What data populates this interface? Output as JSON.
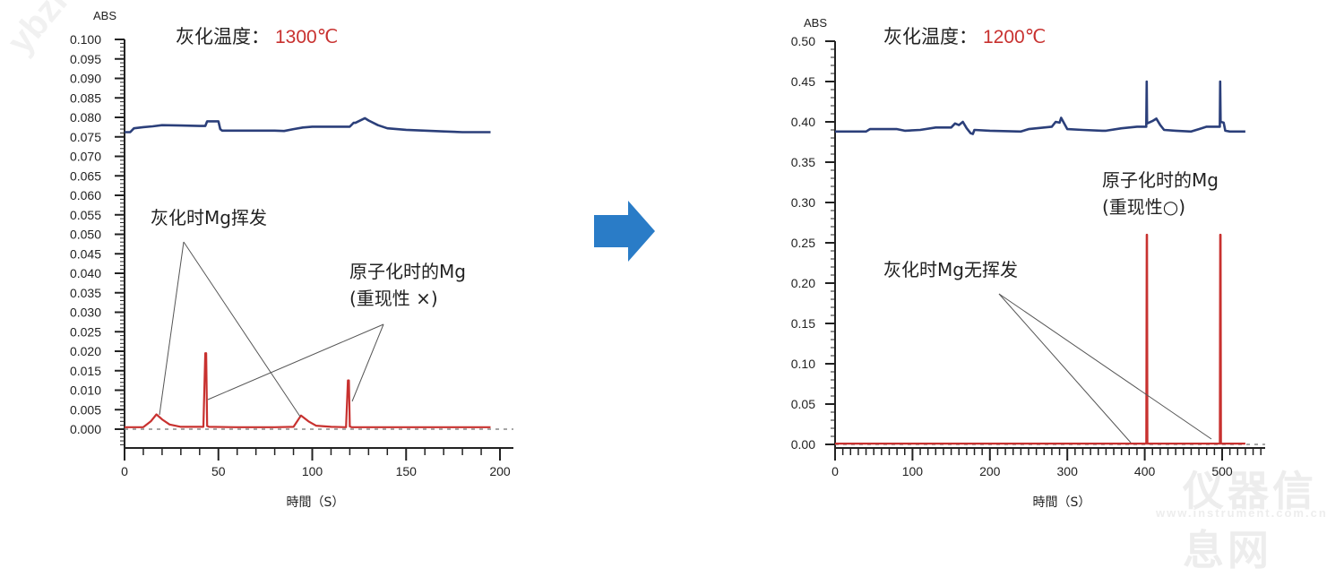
{
  "colors": {
    "blue_series": "#2b3f7a",
    "red_series": "#c8312f",
    "arrow": "#2a7cc7",
    "axis": "#222222",
    "leader_line": "#555555",
    "baseline_dash": "#888888"
  },
  "arrow": {
    "icon": "right-arrow-icon",
    "color": "#2a7cc7"
  },
  "watermarks": [
    "ybzhan.cn",
    "仪器信息网",
    "www.instrument.com.cn"
  ],
  "chart_data": [
    {
      "type": "line",
      "title": "灰化温度：1300℃",
      "title_prefix": "灰化温度：",
      "title_value": "1300℃",
      "xlabel": "時間（S）",
      "ylabel": "ABS",
      "xlim": [
        0,
        210
      ],
      "ylim": [
        -0.005,
        0.1
      ],
      "xticks": [
        0,
        50,
        100,
        150,
        200
      ],
      "yticks": [
        "0.100",
        "0.095",
        "0.090",
        "0.085",
        "0.080",
        "0.075",
        "0.070",
        "0.065",
        "0.060",
        "0.055",
        "0.050",
        "0.045",
        "0.040",
        "0.035",
        "0.030",
        "0.025",
        "0.020",
        "0.015",
        "0.010",
        "0.005",
        "0.000"
      ],
      "baseline": 0.0,
      "grid": false,
      "series": [
        {
          "name": "Background (blue)",
          "color": "#2b3f7a",
          "x": [
            0,
            3,
            5,
            10,
            15,
            20,
            30,
            40,
            43,
            44,
            50,
            51,
            52,
            60,
            70,
            80,
            85,
            90,
            95,
            100,
            110,
            120,
            122,
            123,
            128,
            130,
            135,
            140,
            150,
            160,
            170,
            180,
            190,
            195
          ],
          "y": [
            0.0762,
            0.0762,
            0.0772,
            0.0775,
            0.0777,
            0.078,
            0.0779,
            0.0778,
            0.0778,
            0.079,
            0.079,
            0.077,
            0.0766,
            0.0766,
            0.0766,
            0.0766,
            0.0765,
            0.077,
            0.0774,
            0.0776,
            0.0776,
            0.0776,
            0.0786,
            0.0786,
            0.0798,
            0.0792,
            0.078,
            0.0772,
            0.0768,
            0.0766,
            0.0764,
            0.0762,
            0.0762,
            0.0762
          ]
        },
        {
          "name": "Mg signal (red)",
          "color": "#c8312f",
          "x": [
            0,
            10,
            14,
            17,
            20,
            24,
            30,
            42,
            43,
            43.5,
            44,
            45,
            60,
            80,
            90,
            94,
            98,
            102,
            110,
            118,
            119,
            119.5,
            120,
            121,
            140,
            160,
            180,
            195
          ],
          "y": [
            0.0005,
            0.0005,
            0.002,
            0.0038,
            0.0025,
            0.0012,
            0.0006,
            0.0006,
            0.0195,
            0.0195,
            0.0008,
            0.0006,
            0.0005,
            0.0005,
            0.0006,
            0.0035,
            0.002,
            0.0009,
            0.0006,
            0.0005,
            0.0125,
            0.0125,
            0.0007,
            0.0005,
            0.0005,
            0.0005,
            0.0005,
            0.0005
          ]
        }
      ],
      "annotations": [
        {
          "id": "ashing_volatilize",
          "text": "灰化时Mg挥发",
          "points_to_x": [
            17,
            94
          ]
        },
        {
          "id": "atomization_line1",
          "text": "原子化时的Mg",
          "points_to_x": [
            43,
            120
          ]
        },
        {
          "id": "atomization_line2",
          "text": "(重现性 ×)"
        }
      ]
    },
    {
      "type": "line",
      "title": "灰化温度：1200℃",
      "title_prefix": "灰化温度：",
      "title_value": "1200℃",
      "xlabel": "時間（S）",
      "ylabel": "ABS",
      "xlim": [
        0,
        560
      ],
      "ylim": [
        -0.005,
        0.5
      ],
      "xticks": [
        0,
        100,
        200,
        300,
        400,
        500
      ],
      "yticks": [
        "0.50",
        "0.45",
        "0.40",
        "0.35",
        "0.30",
        "0.25",
        "0.20",
        "0.15",
        "0.10",
        "0.05",
        "0.00"
      ],
      "baseline": 0.0,
      "grid": false,
      "series": [
        {
          "name": "Background (blue)",
          "color": "#2b3f7a",
          "x": [
            0,
            40,
            45,
            80,
            90,
            110,
            130,
            150,
            155,
            160,
            165,
            170,
            175,
            178,
            180,
            200,
            240,
            250,
            270,
            280,
            285,
            290,
            292,
            296,
            300,
            320,
            345,
            350,
            370,
            390,
            402,
            402.5,
            403,
            410,
            415,
            420,
            425,
            440,
            460,
            470,
            480,
            495,
            497,
            497.5,
            498,
            502,
            504,
            510,
            530
          ],
          "y": [
            0.388,
            0.388,
            0.391,
            0.391,
            0.389,
            0.39,
            0.393,
            0.393,
            0.398,
            0.396,
            0.4,
            0.392,
            0.386,
            0.385,
            0.39,
            0.389,
            0.388,
            0.391,
            0.393,
            0.394,
            0.4,
            0.399,
            0.405,
            0.398,
            0.391,
            0.39,
            0.389,
            0.389,
            0.392,
            0.394,
            0.394,
            0.45,
            0.398,
            0.401,
            0.404,
            0.396,
            0.39,
            0.389,
            0.388,
            0.391,
            0.394,
            0.394,
            0.394,
            0.45,
            0.4,
            0.399,
            0.389,
            0.388,
            0.388
          ]
        },
        {
          "name": "Mg signal (red)",
          "color": "#c8312f",
          "x": [
            0,
            100,
            200,
            300,
            402,
            402.5,
            403,
            403.5,
            450,
            497,
            497.5,
            498,
            498.5,
            530
          ],
          "y": [
            0.001,
            0.001,
            0.001,
            0.001,
            0.001,
            0.26,
            0.26,
            0.001,
            0.001,
            0.001,
            0.26,
            0.26,
            0.001,
            0.001
          ]
        }
      ],
      "annotations": [
        {
          "id": "atomization_line1",
          "text": "原子化时的Mg",
          "points_to_x": [
            403,
            498
          ]
        },
        {
          "id": "atomization_line2",
          "text": "(重现性○)"
        },
        {
          "id": "no_volatilize",
          "text": "灰化时Mg无挥发",
          "points_to_x": [
            385,
            490
          ]
        }
      ]
    }
  ]
}
